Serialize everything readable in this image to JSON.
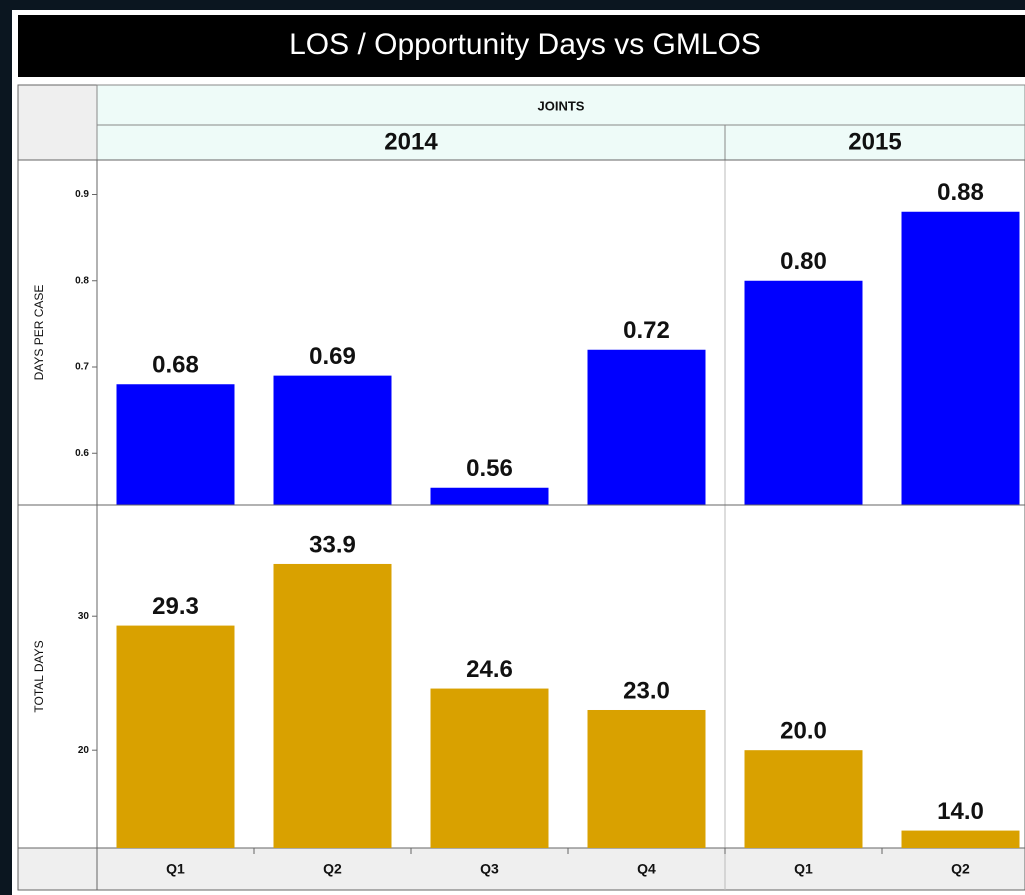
{
  "chart_data": {
    "type": "bar",
    "title": "LOS / Opportunity Days vs GMLOS",
    "group": "JOINTS",
    "years": [
      {
        "label": "2014",
        "span": 4
      },
      {
        "label": "2015",
        "span": 2
      }
    ],
    "categories": [
      "Q1",
      "Q2",
      "Q3",
      "Q4",
      "Q1",
      "Q2"
    ],
    "panels": [
      {
        "ylabel": "DAYS PER CASE",
        "values": [
          0.68,
          0.69,
          0.56,
          0.72,
          0.8,
          0.88
        ],
        "value_labels": [
          "0.68",
          "0.69",
          "0.56",
          "0.72",
          "0.80",
          "0.88"
        ],
        "color": "#0000ff",
        "ylim": [
          0.54,
          0.94
        ],
        "yticks": [
          0.6,
          0.7,
          0.8,
          0.9
        ]
      },
      {
        "ylabel": "TOTAL DAYS",
        "values": [
          29.3,
          33.9,
          24.6,
          23.0,
          20.0,
          14.0
        ],
        "value_labels": [
          "29.3",
          "33.9",
          "24.6",
          "23.0",
          "20.0",
          "14.0"
        ],
        "color": "#d9a100",
        "ylim": [
          12.7,
          38.3
        ],
        "yticks": [
          20,
          30
        ]
      }
    ]
  }
}
